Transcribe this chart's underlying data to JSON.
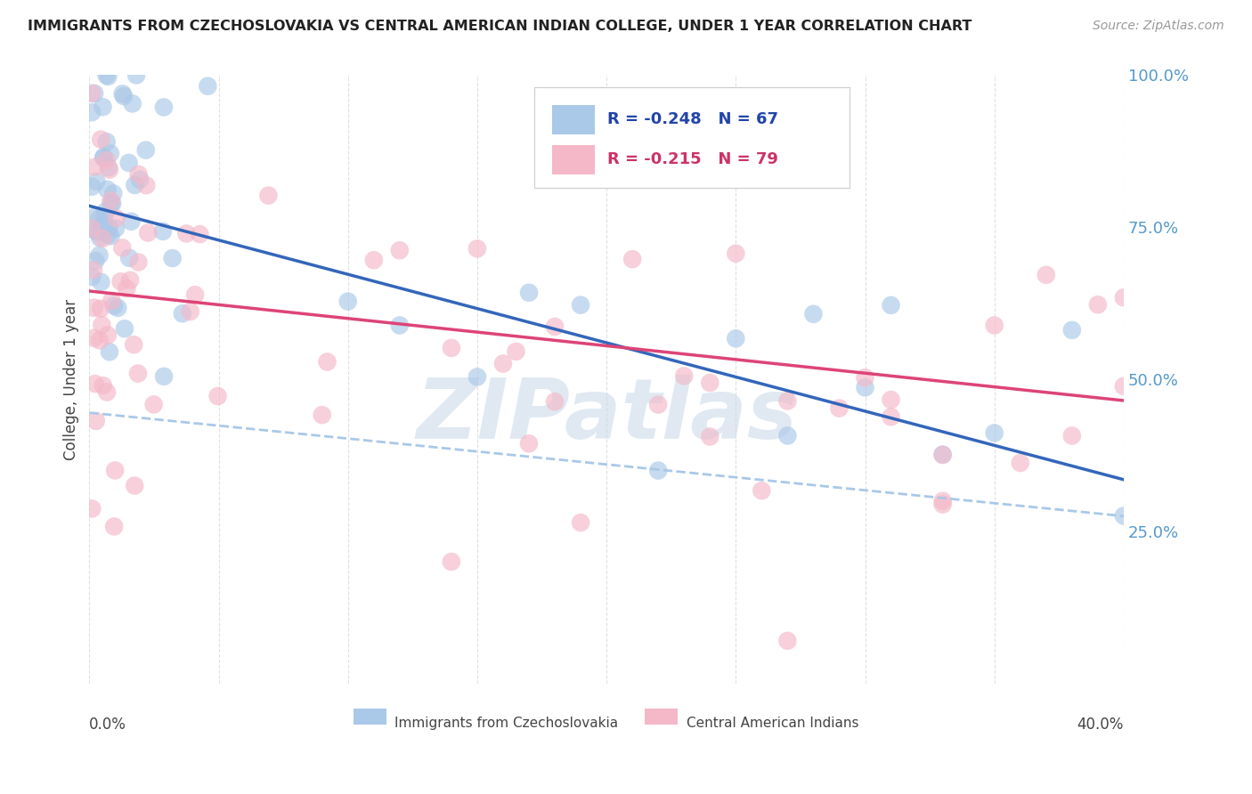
{
  "title": "IMMIGRANTS FROM CZECHOSLOVAKIA VS CENTRAL AMERICAN INDIAN COLLEGE, UNDER 1 YEAR CORRELATION CHART",
  "source": "Source: ZipAtlas.com",
  "ylabel": "College, Under 1 year",
  "right_yticks": [
    "100.0%",
    "75.0%",
    "50.0%",
    "25.0%"
  ],
  "right_ytick_vals": [
    1.0,
    0.75,
    0.5,
    0.25
  ],
  "legend_blue_r": "-0.248",
  "legend_blue_n": "67",
  "legend_pink_r": "-0.215",
  "legend_pink_n": "79",
  "legend_blue_label": "Immigrants from Czechoslovakia",
  "legend_pink_label": "Central American Indians",
  "blue_color": "#aac8e8",
  "pink_color": "#f4b8c8",
  "blue_line_color": "#3366bb",
  "pink_line_color": "#dd4477",
  "dashed_line_color": "#aac8e8",
  "watermark": "ZIPatlas",
  "watermark_color": "#c8d8e8",
  "xmin": 0.0,
  "xmax": 0.4,
  "ymin": 0.0,
  "ymax": 1.0,
  "blue_line_x0": 0.0,
  "blue_line_y0": 0.785,
  "blue_line_x1": 0.4,
  "blue_line_y1": 0.335,
  "pink_line_x0": 0.0,
  "pink_line_y0": 0.645,
  "pink_line_x1": 0.4,
  "pink_line_y1": 0.465,
  "dashed_line_x0": 0.0,
  "dashed_line_y0": 0.445,
  "dashed_line_x1": 0.4,
  "dashed_line_y1": 0.275,
  "grid_color": "#dddddd",
  "background_color": "#ffffff",
  "title_color": "#222222",
  "source_color": "#999999",
  "ylabel_color": "#444444",
  "right_tick_color": "#5599cc",
  "bottom_label_color": "#444444"
}
